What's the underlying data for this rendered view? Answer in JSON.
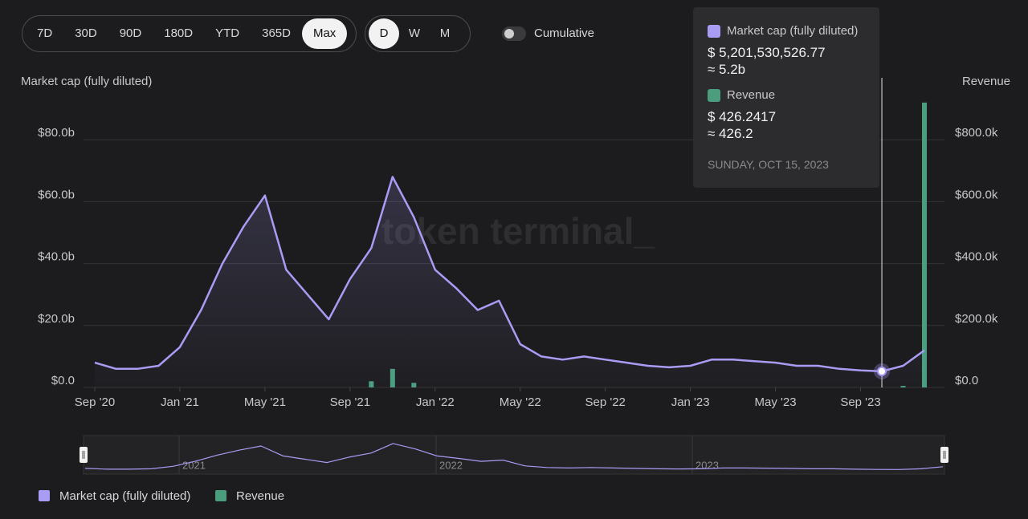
{
  "chart_data": {
    "type": "line",
    "ranges": [
      "7D",
      "30D",
      "90D",
      "180D",
      "YTD",
      "365D",
      "Max"
    ],
    "active_range": "Max",
    "granularities": [
      "D",
      "W",
      "M"
    ],
    "active_granularity": "D",
    "toggle_label": "Cumulative",
    "ylabel": "Market cap (fully diluted)",
    "y2label": "Revenue",
    "watermark": "token terminal_",
    "x": [
      "2020-09",
      "2020-10",
      "2020-11",
      "2020-12",
      "2021-01",
      "2021-02",
      "2021-03",
      "2021-04",
      "2021-05",
      "2021-06",
      "2021-07",
      "2021-08",
      "2021-09",
      "2021-10",
      "2021-11",
      "2021-12",
      "2022-01",
      "2022-02",
      "2022-03",
      "2022-04",
      "2022-05",
      "2022-06",
      "2022-07",
      "2022-08",
      "2022-09",
      "2022-10",
      "2022-11",
      "2022-12",
      "2023-01",
      "2023-02",
      "2023-03",
      "2023-04",
      "2023-05",
      "2023-06",
      "2023-07",
      "2023-08",
      "2023-09",
      "2023-10",
      "2023-11",
      "2023-12"
    ],
    "xlim": [
      "2020-09",
      "2023-12"
    ],
    "xticks": [
      {
        "value": "2020-09",
        "label": "Sep '20"
      },
      {
        "value": "2021-01",
        "label": "Jan '21"
      },
      {
        "value": "2021-05",
        "label": "May '21"
      },
      {
        "value": "2021-09",
        "label": "Sep '21"
      },
      {
        "value": "2022-01",
        "label": "Jan '22"
      },
      {
        "value": "2022-05",
        "label": "May '22"
      },
      {
        "value": "2022-09",
        "label": "Sep '22"
      },
      {
        "value": "2023-01",
        "label": "Jan '23"
      },
      {
        "value": "2023-05",
        "label": "May '23"
      },
      {
        "value": "2023-09",
        "label": "Sep '23"
      }
    ],
    "ylim": [
      0,
      100
    ],
    "yticks": [
      {
        "value": 0,
        "label": "$0.0"
      },
      {
        "value": 20,
        "label": "$20.0b"
      },
      {
        "value": 40,
        "label": "$40.0b"
      },
      {
        "value": 60,
        "label": "$60.0b"
      },
      {
        "value": 80,
        "label": "$80.0b"
      }
    ],
    "y2lim": [
      0,
      1000000
    ],
    "y2ticks": [
      {
        "value": 0,
        "label": "$0.0"
      },
      {
        "value": 200000,
        "label": "$200.0k"
      },
      {
        "value": 400000,
        "label": "$400.0k"
      },
      {
        "value": 600000,
        "label": "$600.0k"
      },
      {
        "value": 800000,
        "label": "$800.0k"
      }
    ],
    "grid": true,
    "series": [
      {
        "name": "Market cap (fully diluted)",
        "color": "#a99cf5",
        "type": "line",
        "values": [
          8,
          6,
          6,
          7,
          13,
          25,
          40,
          52,
          62,
          38,
          30,
          22,
          35,
          45,
          68,
          55,
          38,
          32,
          25,
          28,
          14,
          10,
          9,
          10,
          9,
          8,
          7,
          6.5,
          7,
          9,
          9,
          8.5,
          8,
          7,
          7,
          6,
          5.5,
          5.2,
          7,
          12
        ]
      },
      {
        "name": "Revenue",
        "color": "#4a9e7e",
        "type": "bar",
        "axis": "y2",
        "values": [
          0,
          0,
          0,
          0,
          0,
          0,
          0,
          0,
          0,
          0,
          0,
          0,
          0,
          20000,
          60000,
          15000,
          0,
          0,
          0,
          0,
          0,
          0,
          0,
          0,
          0,
          0,
          0,
          0,
          0,
          0,
          0,
          0,
          0,
          0,
          0,
          0,
          0,
          426.2417,
          5000,
          920000
        ]
      }
    ],
    "navigator_labels": [
      "2021",
      "2022",
      "2023"
    ],
    "tooltip": {
      "series1": "Market cap (fully diluted)",
      "value1": "$ 5,201,530,526.77",
      "approx1": "≈ 5.2b",
      "series2": "Revenue",
      "value2": "$ 426.2417",
      "approx2": "≈ 426.2",
      "date": "SUNDAY, OCT 15, 2023"
    }
  }
}
